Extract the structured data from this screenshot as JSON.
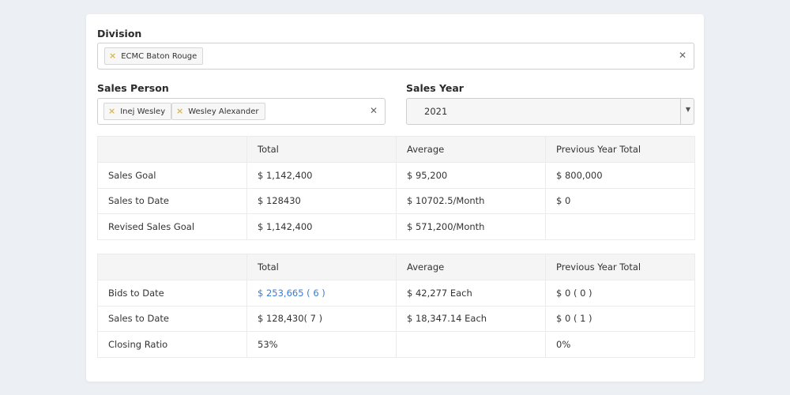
{
  "division": {
    "label": "Division",
    "tags": [
      "ECMC Baton Rouge"
    ],
    "clear_icon": "close-icon"
  },
  "sales_person": {
    "label": "Sales Person",
    "tags": [
      "Inej Wesley",
      "Wesley Alexander"
    ],
    "clear_icon": "close-icon"
  },
  "sales_year": {
    "label": "Sales Year",
    "value": "2021",
    "caret_icon": "caret-down-icon"
  },
  "goals_table": {
    "headers": [
      "",
      "Total",
      "Average",
      "Previous Year Total"
    ],
    "rows": [
      [
        "Sales Goal",
        "$ 1,142,400",
        "$ 95,200",
        "$ 800,000"
      ],
      [
        "Sales to Date",
        "$ 128430",
        "$ 10702.5/Month",
        "$ 0"
      ],
      [
        "Revised Sales Goal",
        "$ 1,142,400",
        "$ 571,200/Month",
        ""
      ]
    ]
  },
  "bids_table": {
    "headers": [
      "",
      "Total",
      "Average",
      "Previous Year Total"
    ],
    "rows": [
      [
        "Bids to Date",
        "$ 253,665 ( 6 )",
        "$ 42,277 Each",
        "$ 0 ( 0 )"
      ],
      [
        "Sales to Date",
        "$ 128,430( 7 )",
        "$ 18,347.14 Each",
        "$ 0 ( 1 )"
      ],
      [
        "Closing Ratio",
        "53%",
        "",
        "0%"
      ]
    ]
  },
  "colors": {
    "background": "#eceff3",
    "link": "#3a7bd5",
    "tag_x": "#d9b84a"
  }
}
